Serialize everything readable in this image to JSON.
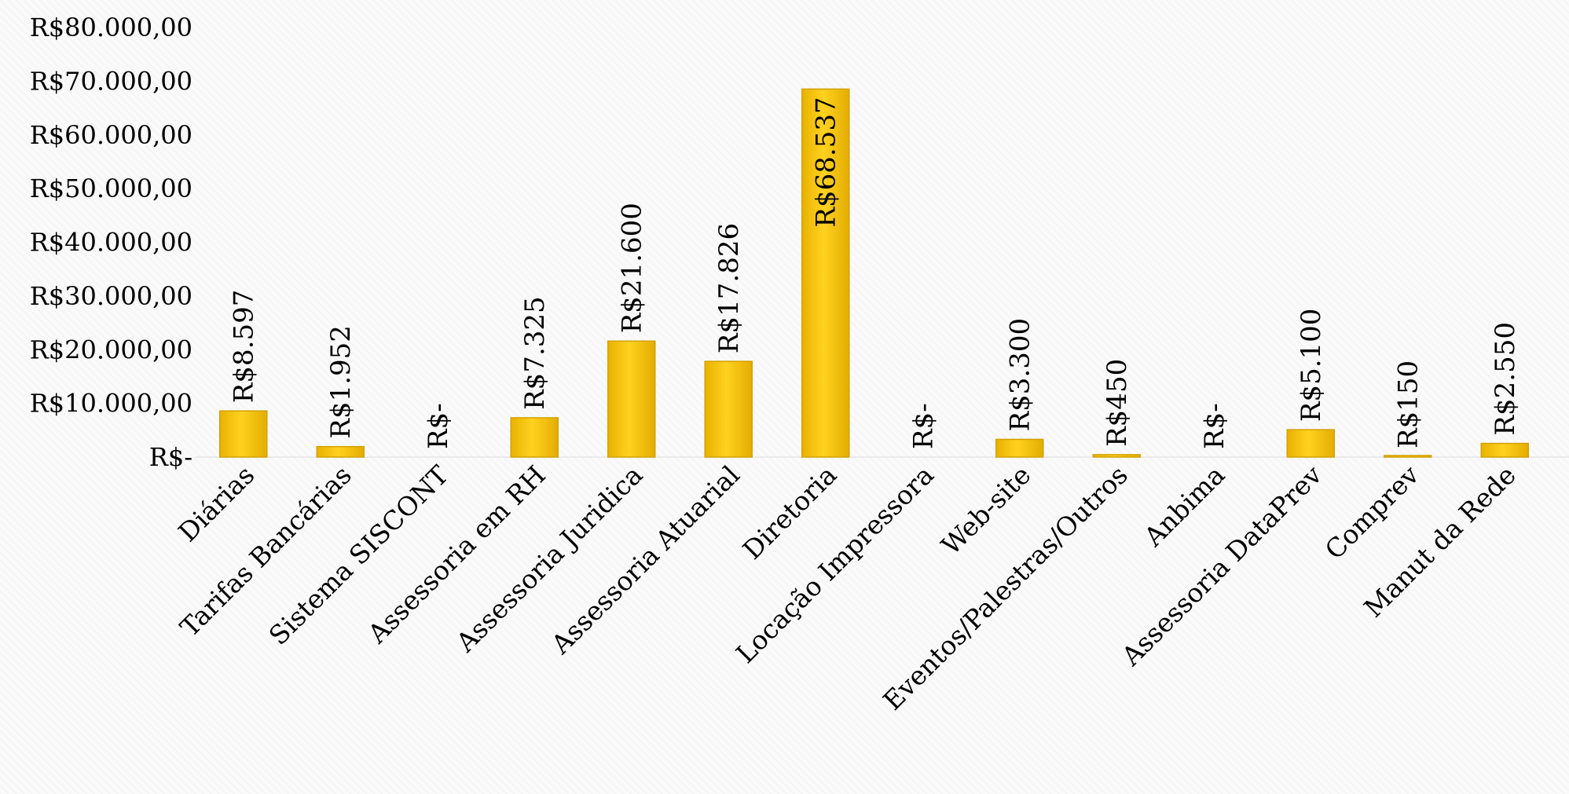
{
  "chart_data": {
    "type": "bar",
    "categories": [
      "Diárias",
      "Tarifas Bancárias",
      "Sistema SISCONT",
      "Assessoria em RH",
      "Assessoria  Juridica",
      "Assessoria Atuarial",
      "Diretoria",
      "Locação Impressora",
      "Web-site",
      "Eventos/Palestras/Outros",
      "Anbima",
      "Assessoria DataPrev",
      "Comprev",
      "Manut da Rede"
    ],
    "values": [
      8597,
      1952,
      0,
      7325,
      21600,
      17826,
      68537,
      0,
      3300,
      450,
      0,
      5100,
      150,
      2550
    ],
    "data_labels": [
      "R$8.597",
      "R$1.952",
      "R$-",
      "R$7.325",
      "R$21.600",
      "R$17.826",
      "R$68.537",
      "R$-",
      "R$3.300",
      "R$450",
      "R$-",
      "R$5.100",
      "R$150",
      "R$2.550"
    ],
    "y_ticks": [
      0,
      10000,
      20000,
      30000,
      40000,
      50000,
      60000,
      70000,
      80000
    ],
    "y_tick_labels": [
      "R$-",
      "R$10.000,00",
      "R$20.000,00",
      "R$30.000,00",
      "R$40.000,00",
      "R$50.000,00",
      "R$60.000,00",
      "R$70.000,00",
      "R$80.000,00"
    ],
    "ylim": [
      0,
      80000
    ],
    "title": "",
    "xlabel": "",
    "ylabel": "",
    "grid": false,
    "legend": "none",
    "bar_color": "#ffc700",
    "bar_edge_color": "#d4a100"
  }
}
